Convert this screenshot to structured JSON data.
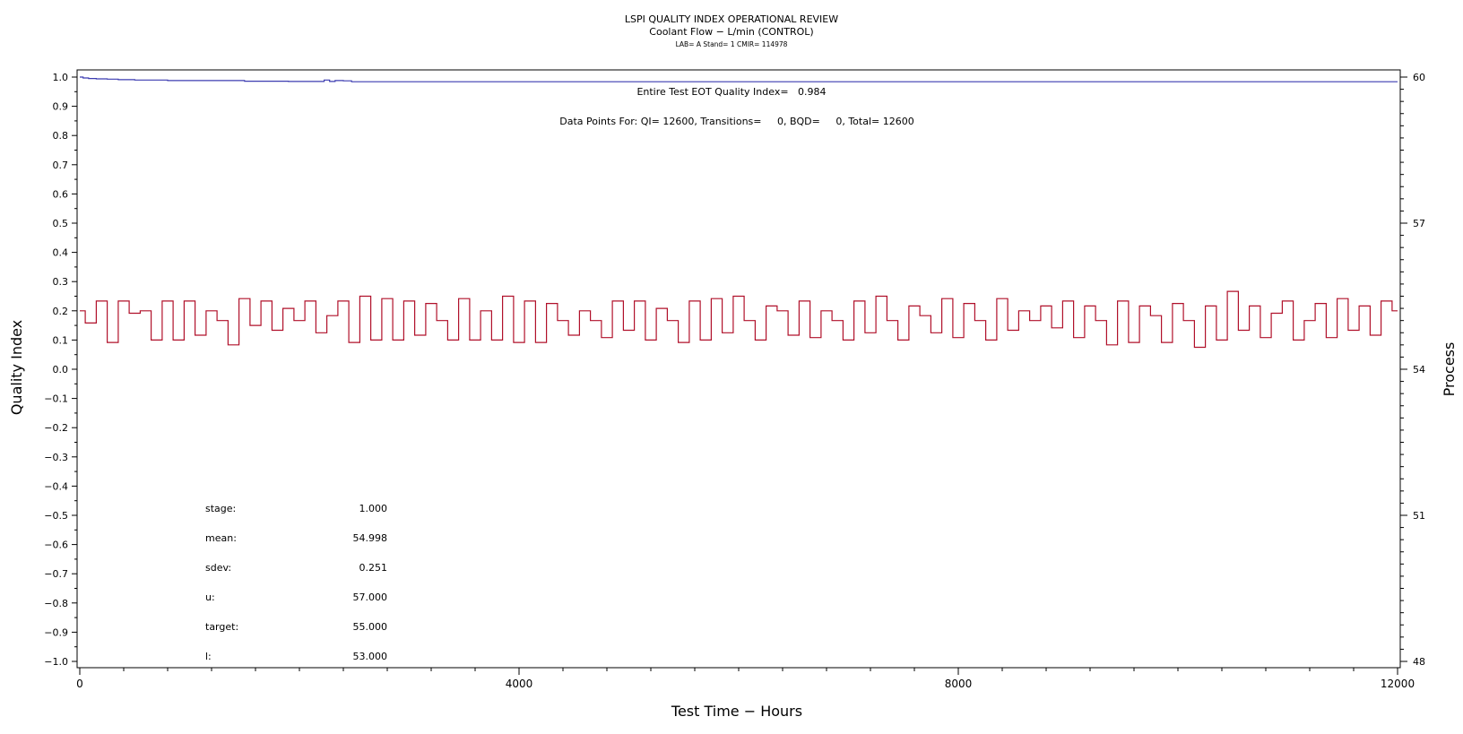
{
  "chart_data": {
    "type": "line",
    "title": "LSPI QUALITY INDEX OPERATIONAL REVIEW",
    "subtitle": "Coolant Flow − L/min (CONTROL)",
    "subsubtitle": "LAB= A Stand= 1 CMIR= 114978",
    "xlabel": "Test Time − Hours",
    "ylabel_left": "Quality Index",
    "ylabel_right": "Process",
    "xlim": [
      0,
      12000
    ],
    "ylim_left": [
      -1.0,
      1.0
    ],
    "ylim_right": [
      48,
      60
    ],
    "x_ticks": [
      "0",
      "4000",
      "8000",
      "12000"
    ],
    "y_left_ticks": [
      "1.0",
      "0.9",
      "0.8",
      "0.7",
      "0.6",
      "0.5",
      "0.4",
      "0.3",
      "0.2",
      "0.1",
      "0.0",
      "−0.1",
      "−0.2",
      "−0.3",
      "−0.4",
      "−0.5",
      "−0.6",
      "−0.7",
      "−0.8",
      "−0.9",
      "−1.0"
    ],
    "y_right_ticks": [
      "60",
      "57",
      "54",
      "51",
      "48"
    ],
    "annotations": {
      "eot": "Entire Test EOT Quality Index=   0.984",
      "points": "Data Points For: QI= 12600, Transitions=     0, BQD=     0, Total= 12600"
    },
    "stats": [
      {
        "label": "stage:",
        "value": "1.000"
      },
      {
        "label": "mean:",
        "value": "54.998"
      },
      {
        "label": "sdev:",
        "value": "0.251"
      },
      {
        "label": "u:",
        "value": "57.000"
      },
      {
        "label": "target:",
        "value": "55.000"
      },
      {
        "label": "l:",
        "value": "53.000"
      }
    ],
    "series": [
      {
        "axis": "left",
        "color": "#3b3bb0",
        "x": [
          0,
          60,
          100,
          200,
          300,
          400,
          600,
          1000,
          1300,
          1400,
          1600,
          2200,
          2250,
          2300,
          2350,
          2450,
          2500,
          2600,
          3000,
          4000,
          6000,
          8000,
          10000,
          12000
        ],
        "values": [
          1.0,
          0.997,
          0.995,
          0.994,
          0.993,
          0.991,
          0.99,
          0.988,
          0.988,
          0.988,
          0.986,
          0.985,
          0.99,
          0.985,
          0.988,
          0.987,
          0.984,
          0.984,
          0.984,
          0.984,
          0.984,
          0.984,
          0.984,
          0.984
        ]
      },
      {
        "axis": "right",
        "color": "#b0102a",
        "x": [
          0,
          100,
          200,
          300,
          400,
          500,
          600,
          700,
          800,
          900,
          1000,
          1100,
          1200,
          1300,
          1400,
          1500,
          1600,
          1700,
          1800,
          1900,
          2000,
          2100,
          2200,
          2300,
          2400,
          2500,
          2600,
          2700,
          2800,
          2900,
          3000,
          3100,
          3200,
          3300,
          3400,
          3500,
          3600,
          3700,
          3800,
          3900,
          4000,
          4100,
          4200,
          4300,
          4400,
          4500,
          4600,
          4700,
          4800,
          4900,
          5000,
          5100,
          5200,
          5300,
          5400,
          5500,
          5600,
          5700,
          5800,
          5900,
          6000,
          6100,
          6200,
          6300,
          6400,
          6500,
          6600,
          6700,
          6800,
          6900,
          7000,
          7100,
          7200,
          7300,
          7400,
          7500,
          7600,
          7700,
          7800,
          7900,
          8000,
          8100,
          8200,
          8300,
          8400,
          8500,
          8600,
          8700,
          8800,
          8900,
          9000,
          9100,
          9200,
          9300,
          9400,
          9500,
          9600,
          9700,
          9800,
          9900,
          10000,
          10100,
          10200,
          10300,
          10400,
          10500,
          10600,
          10700,
          10800,
          10900,
          11000,
          11100,
          11200,
          11300,
          11400,
          11500,
          11600,
          11700,
          11800,
          11900,
          12000
        ],
        "values": [
          55.2,
          54.95,
          55.4,
          54.55,
          55.4,
          55.15,
          55.2,
          54.6,
          55.4,
          54.6,
          55.4,
          54.7,
          55.2,
          55.0,
          54.5,
          55.45,
          54.9,
          55.4,
          54.8,
          55.25,
          55.0,
          55.4,
          54.75,
          55.1,
          55.4,
          54.55,
          55.5,
          54.6,
          55.45,
          54.6,
          55.4,
          54.7,
          55.35,
          55.0,
          54.6,
          55.45,
          54.6,
          55.2,
          54.6,
          55.5,
          54.55,
          55.4,
          54.55,
          55.35,
          55.0,
          54.7,
          55.2,
          55.0,
          54.65,
          55.4,
          54.8,
          55.4,
          54.6,
          55.25,
          55.0,
          54.55,
          55.4,
          54.6,
          55.45,
          54.75,
          55.5,
          55.0,
          54.6,
          55.3,
          55.2,
          54.7,
          55.4,
          54.65,
          55.2,
          55.0,
          54.6,
          55.4,
          54.75,
          55.5,
          55.0,
          54.6,
          55.3,
          55.1,
          54.75,
          55.45,
          54.65,
          55.35,
          55.0,
          54.6,
          55.45,
          54.8,
          55.2,
          55.0,
          55.3,
          54.85,
          55.4,
          54.65,
          55.3,
          55.0,
          54.5,
          55.4,
          54.55,
          55.3,
          55.1,
          54.55,
          55.35,
          55.0,
          54.45,
          55.3,
          54.6,
          55.6,
          54.8,
          55.3,
          54.65,
          55.15,
          55.4,
          54.6,
          55.0,
          55.35,
          54.65,
          55.45,
          54.8,
          55.3,
          54.7,
          55.4,
          55.2
        ]
      }
    ]
  }
}
